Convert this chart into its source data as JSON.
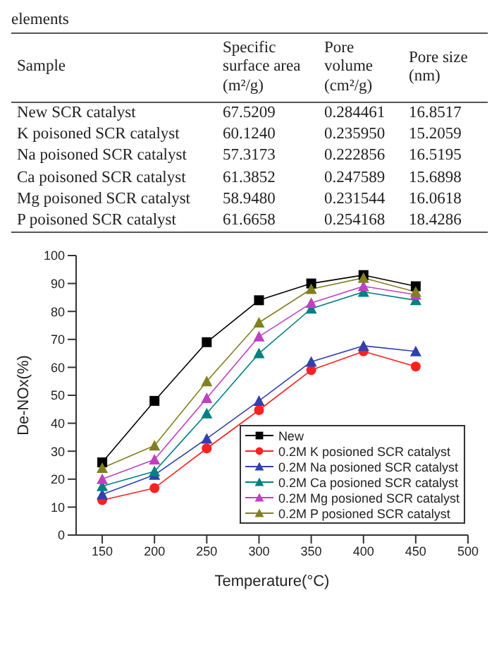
{
  "chart_data": [
    {
      "type": "other",
      "title": "elements",
      "xlabel": "Sample",
      "categories": [
        "New SCR catalyst",
        "K poisoned SCR catalyst",
        "Na poisoned SCR catalyst",
        "Ca poisoned SCR catalyst",
        "Mg poisoned SCR catalyst",
        "P poisoned SCR catalyst"
      ],
      "series": [
        {
          "name": "Specific surface area (m²/g)",
          "values": [
            67.5209,
            60.124,
            57.3173,
            61.3852,
            58.948,
            61.6658
          ],
          "value_labels": [
            "67.5209",
            "60.1240",
            "57.3173",
            "61.3852",
            "58.9480",
            "61.6658"
          ]
        },
        {
          "name": "Pore volume (cm²/g)",
          "values": [
            0.284461,
            0.23595,
            0.222856,
            0.247589,
            0.231544,
            0.254168
          ],
          "value_labels": [
            "0.284461",
            "0.235950",
            "0.222856",
            "0.247589",
            "0.231544",
            "0.254168"
          ]
        },
        {
          "name": "Pore size (nm)",
          "values": [
            16.8517,
            15.2059,
            16.5195,
            15.6898,
            16.0618,
            18.4286
          ],
          "value_labels": [
            "16.8517",
            "15.2059",
            "16.5195",
            "15.6898",
            "16.0618",
            "18.4286"
          ]
        }
      ]
    },
    {
      "type": "line",
      "xlabel": "Temperature(°C)",
      "ylabel": "De-NOx(%)",
      "x": [
        150,
        200,
        250,
        300,
        350,
        400,
        450
      ],
      "xlim": [
        125,
        500
      ],
      "xticks": [
        150,
        200,
        250,
        300,
        350,
        400,
        450,
        500
      ],
      "ylim": [
        0,
        100
      ],
      "yticks": [
        0,
        10,
        20,
        30,
        40,
        50,
        60,
        70,
        80,
        90,
        100
      ],
      "grid": false,
      "legend": "bottom right",
      "series": [
        {
          "name": "New",
          "color": "#000000",
          "marker": "square",
          "values": [
            26,
            48,
            69,
            84,
            90,
            93,
            89
          ]
        },
        {
          "name": "0.2M K posioned SCR catalyst",
          "color": "#ff2020",
          "marker": "circle",
          "values": [
            12.5,
            16.8,
            31,
            44.7,
            59,
            65.7,
            60.3
          ]
        },
        {
          "name": "0.2M Na posioned SCR catalyst",
          "color": "#3040b0",
          "marker": "triangle",
          "values": [
            14.5,
            21.5,
            34.5,
            48,
            62,
            67.7,
            65.7
          ]
        },
        {
          "name": "0.2M Ca posioned SCR catalyst",
          "color": "#008080",
          "marker": "triangle",
          "values": [
            17.5,
            22.8,
            43.5,
            65,
            81,
            87,
            84
          ]
        },
        {
          "name": "0.2M Mg posioned SCR catalyst",
          "color": "#c040c0",
          "marker": "triangle",
          "values": [
            20,
            27,
            49,
            71,
            83,
            89,
            86
          ]
        },
        {
          "name": "0.2M P posioned SCR catalyst",
          "color": "#808020",
          "marker": "triangle",
          "values": [
            24,
            32,
            55,
            76,
            88,
            92,
            87
          ]
        }
      ]
    }
  ]
}
